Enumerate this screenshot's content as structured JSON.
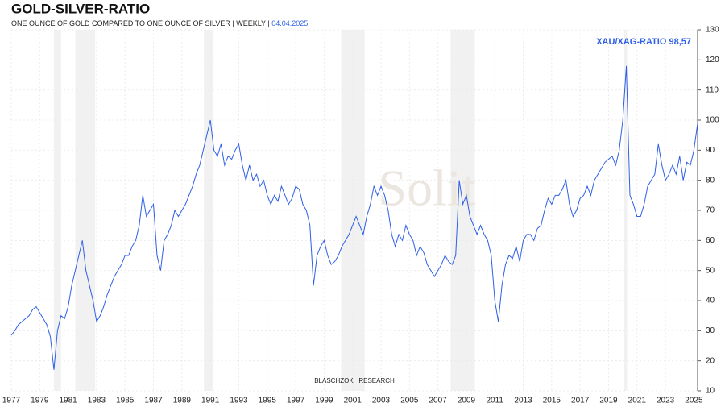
{
  "chart_data": {
    "type": "line",
    "title": "GOLD-SILVER-RATIO",
    "subtitle": "ONE OUNCE OF GOLD COMPARED TO ONE OUNCE OF SILVER | WEEKLY | ",
    "date": "04.04.2025",
    "annotation": "XAU/XAG-RATIO 98,57",
    "watermark": "Solit",
    "footer": "BLASCHZOK   RESEARCH",
    "color": "#2f5fe8",
    "grid": true,
    "xlim": [
      1977,
      2025.26
    ],
    "ylim": [
      10,
      130
    ],
    "xticks": [
      1977,
      1979,
      1981,
      1983,
      1985,
      1987,
      1989,
      1991,
      1993,
      1995,
      1997,
      1999,
      2001,
      2003,
      2005,
      2007,
      2009,
      2011,
      2013,
      2015,
      2017,
      2019,
      2021,
      2023,
      2025
    ],
    "yticks": [
      10,
      20,
      30,
      40,
      50,
      60,
      70,
      80,
      90,
      100,
      110,
      120,
      130
    ],
    "shaded_periods": [
      [
        1980.0,
        1980.5
      ],
      [
        1981.5,
        1982.9
      ],
      [
        1990.55,
        1991.2
      ],
      [
        2000.2,
        2001.85
      ],
      [
        2007.9,
        2009.6
      ],
      [
        2020.1,
        2020.3
      ]
    ],
    "x": [
      1977,
      1977.25,
      1977.5,
      1977.75,
      1978,
      1978.25,
      1978.5,
      1978.75,
      1979,
      1979.25,
      1979.5,
      1979.75,
      1980,
      1980.25,
      1980.5,
      1980.75,
      1981,
      1981.25,
      1981.5,
      1981.75,
      1982,
      1982.25,
      1982.5,
      1982.75,
      1983,
      1983.25,
      1983.5,
      1983.75,
      1984,
      1984.25,
      1984.5,
      1984.75,
      1985,
      1985.25,
      1985.5,
      1985.75,
      1986,
      1986.25,
      1986.5,
      1986.75,
      1987,
      1987.25,
      1987.5,
      1987.75,
      1988,
      1988.25,
      1988.5,
      1988.75,
      1989,
      1989.25,
      1989.5,
      1989.75,
      1990,
      1990.25,
      1990.5,
      1990.75,
      1991,
      1991.25,
      1991.5,
      1991.75,
      1992,
      1992.25,
      1992.5,
      1992.75,
      1993,
      1993.25,
      1993.5,
      1993.75,
      1994,
      1994.25,
      1994.5,
      1994.75,
      1995,
      1995.25,
      1995.5,
      1995.75,
      1996,
      1996.25,
      1996.5,
      1996.75,
      1997,
      1997.25,
      1997.5,
      1997.75,
      1998,
      1998.25,
      1998.5,
      1998.75,
      1999,
      1999.25,
      1999.5,
      1999.75,
      2000,
      2000.25,
      2000.5,
      2000.75,
      2001,
      2001.25,
      2001.5,
      2001.75,
      2002,
      2002.25,
      2002.5,
      2002.75,
      2003,
      2003.25,
      2003.5,
      2003.75,
      2004,
      2004.25,
      2004.5,
      2004.75,
      2005,
      2005.25,
      2005.5,
      2005.75,
      2006,
      2006.25,
      2006.5,
      2006.75,
      2007,
      2007.25,
      2007.5,
      2007.75,
      2008,
      2008.25,
      2008.5,
      2008.75,
      2009,
      2009.25,
      2009.5,
      2009.75,
      2010,
      2010.25,
      2010.5,
      2010.75,
      2011,
      2011.25,
      2011.5,
      2011.75,
      2012,
      2012.25,
      2012.5,
      2012.75,
      2013,
      2013.25,
      2013.5,
      2013.75,
      2014,
      2014.25,
      2014.5,
      2014.75,
      2015,
      2015.25,
      2015.5,
      2015.75,
      2016,
      2016.25,
      2016.5,
      2016.75,
      2017,
      2017.25,
      2017.5,
      2017.75,
      2018,
      2018.25,
      2018.5,
      2018.75,
      2019,
      2019.25,
      2019.5,
      2019.75,
      2020,
      2020.25,
      2020.5,
      2020.75,
      2021,
      2021.25,
      2021.5,
      2021.75,
      2022,
      2022.25,
      2022.5,
      2022.75,
      2023,
      2023.25,
      2023.5,
      2023.75,
      2024,
      2024.25,
      2024.5,
      2024.75,
      2025,
      2025.25
    ],
    "values": [
      28.5,
      30,
      32,
      33,
      34,
      35,
      37,
      38,
      36,
      34,
      32,
      28,
      17,
      30,
      35,
      34,
      38,
      45,
      50,
      55,
      60,
      50,
      45,
      40,
      33,
      35,
      38,
      42,
      45,
      48,
      50,
      52,
      55,
      55,
      58,
      60,
      65,
      75,
      68,
      70,
      72,
      55,
      50,
      60,
      62,
      65,
      70,
      68,
      70,
      72,
      75,
      78,
      82,
      85,
      90,
      95,
      100,
      90,
      88,
      92,
      85,
      88,
      87,
      90,
      92,
      85,
      80,
      85,
      80,
      82,
      78,
      80,
      75,
      72,
      75,
      73,
      78,
      75,
      72,
      74,
      78,
      77,
      72,
      70,
      65,
      45,
      55,
      58,
      60,
      55,
      52,
      53,
      55,
      58,
      60,
      62,
      65,
      68,
      65,
      62,
      68,
      72,
      78,
      75,
      78,
      75,
      70,
      62,
      58,
      62,
      60,
      65,
      62,
      60,
      55,
      58,
      56,
      52,
      50,
      48,
      50,
      52,
      55,
      53,
      52,
      55,
      80,
      72,
      75,
      68,
      65,
      62,
      65,
      62,
      60,
      55,
      40,
      33,
      45,
      52,
      55,
      54,
      58,
      53,
      60,
      62,
      62,
      60,
      64,
      65,
      70,
      74,
      72,
      75,
      75,
      77,
      80,
      72,
      68,
      70,
      74,
      75,
      78,
      75,
      80,
      82,
      84,
      86,
      87,
      88,
      85,
      90,
      100,
      118,
      75,
      72,
      68,
      68,
      72,
      78,
      80,
      82,
      92,
      85,
      80,
      82,
      85,
      82,
      88,
      80,
      86,
      85,
      90,
      98.57
    ]
  }
}
